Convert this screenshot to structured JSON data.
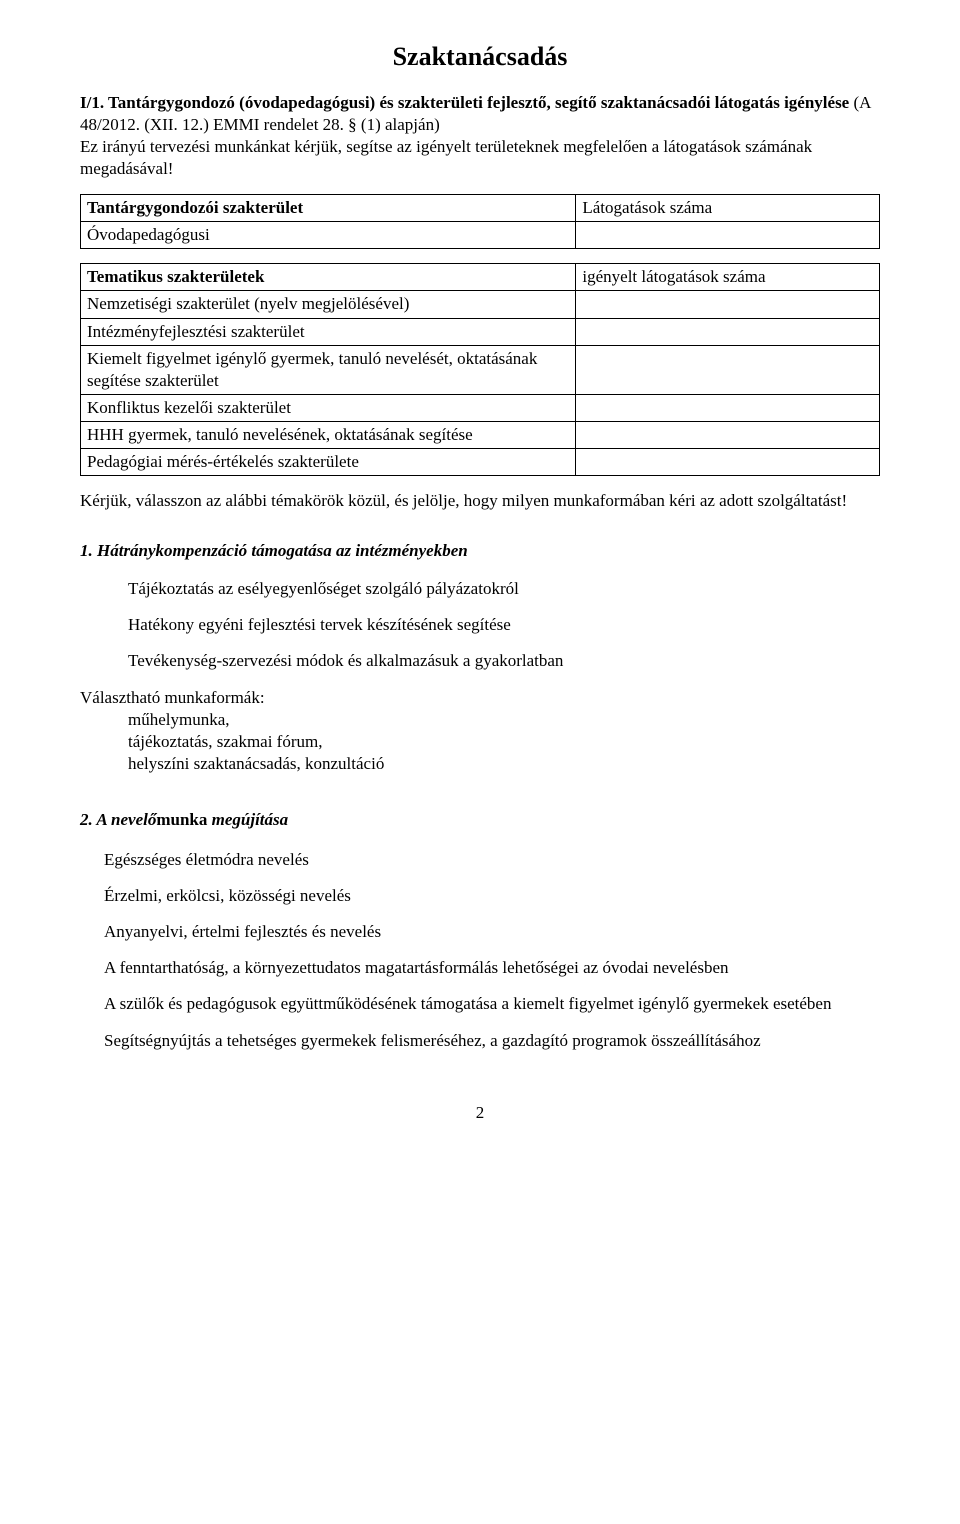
{
  "title": "Szaktanácsadás",
  "intro": {
    "bold_part": "I/1. Tantárgygondozó (óvodapedagógusi) és szakterületi fejlesztő, segítő szaktanácsadói látogatás igénylése ",
    "normal_part": "(A 48/2012. (XII. 12.) EMMI rendelet 28. § (1) alapján)"
  },
  "lead": "Ez irányú tervezési munkánkat kérjük, segítse az igényelt területeknek megfelelően a látogatások számának megadásával!",
  "table1": {
    "h1": "Tantárgygondozói szakterület",
    "h2": "Látogatások száma",
    "r1": "Óvodapedagógusi"
  },
  "table2": {
    "h1": "Tematikus szakterületek",
    "h2": "igényelt látogatások száma",
    "rows": [
      "Nemzetiségi szakterület (nyelv megjelölésével)",
      "Intézményfejlesztési szakterület",
      "Kiemelt figyelmet igénylő gyermek, tanuló nevelését, oktatásának segítése szakterület",
      "Konfliktus kezelői szakterület",
      "HHH gyermek, tanuló nevelésének, oktatásának segítése",
      "Pedagógiai mérés-értékelés szakterülete"
    ]
  },
  "instruction": "Kérjük, válasszon az alábbi témakörök közül, és jelölje, hogy milyen munkaformában kéri az adott szolgáltatást!",
  "section1": {
    "title": "1. Hátránykompenzáció támogatása az intézményekben",
    "items": [
      "Tájékoztatás az esélyegyenlőséget szolgáló pályázatokról",
      "Hatékony egyéni fejlesztési tervek készítésének segítése",
      "Tevékenység-szervezési módok és alkalmazásuk a gyakorlatban"
    ],
    "forms_label": "Választható munkaformák:",
    "forms": [
      "műhelymunka,",
      "tájékoztatás, szakmai fórum,",
      "helyszíni szaktanácsadás, konzultáció"
    ]
  },
  "section2": {
    "title_prefix": "2. A nevelő",
    "title_mid": "munka ",
    "title_suffix": "megújítása",
    "items": [
      "Egészséges életmódra nevelés",
      "Érzelmi, erkölcsi, közösségi nevelés",
      "Anyanyelvi, értelmi fejlesztés és nevelés",
      "A fenntarthatóság, a környezettudatos magatartásformálás lehetőségei az óvodai nevelésben",
      "A szülők és pedagógusok együttműködésének támogatása a kiemelt figyelmet igénylő gyermekek esetében",
      "Segítségnyújtás a tehetséges gyermekek felismeréséhez, a gazdagító programok összeállításához"
    ]
  },
  "page_number": "2"
}
